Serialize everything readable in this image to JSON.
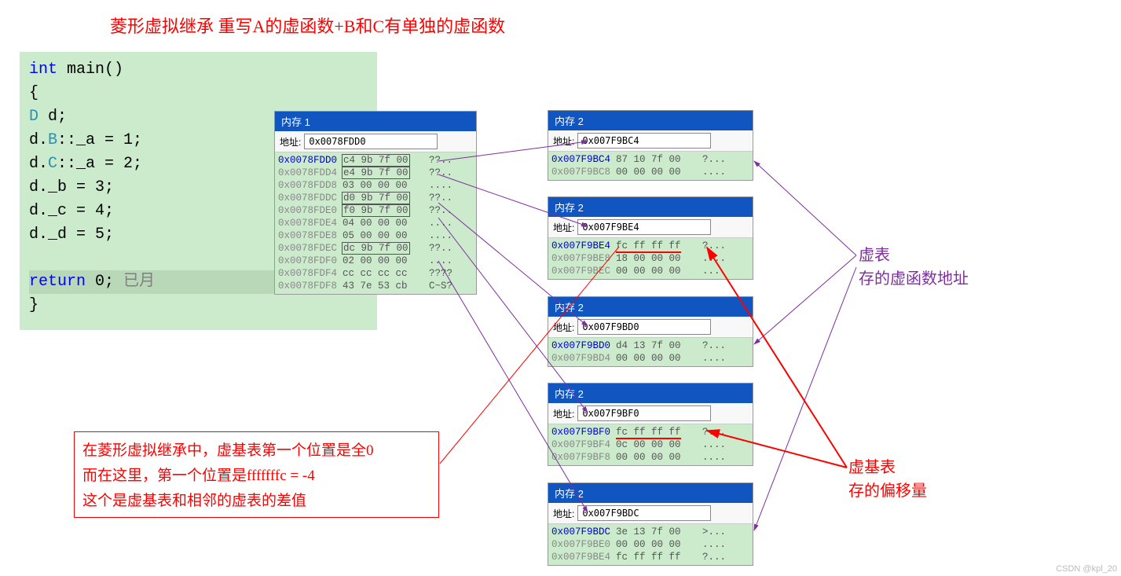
{
  "title": "菱形虚拟继承    重写A的虚函数+B和C有单独的虚函数",
  "code": {
    "l1_kw": "int",
    "l1_fn": " main()",
    "l2": "{",
    "l3_cls": "D",
    "l3_rest": " d;",
    "l4_p1": "    d.",
    "l4_cls": "B",
    "l4_p2": "::_a = 1;",
    "l5_p1": "    d.",
    "l5_cls": "C",
    "l5_p2": "::_a = 2;",
    "l6": "    d._b = 3;",
    "l7": "    d._c = 4;",
    "l8": "    d._d = 5;",
    "l10_kw": "return",
    "l10_num": " 0",
    "l10_end": ";",
    "l10_gray": "   已月",
    "l11": "}"
  },
  "mem1": {
    "title": "内存 1",
    "addr_label": "地址:",
    "addr": "0x0078FDD0",
    "rows": [
      {
        "addr": "0x0078FDD0",
        "hex": "c4 9b 7f 00",
        "ascii": "??..",
        "hl": true,
        "boxed": true
      },
      {
        "addr": "0x0078FDD4",
        "hex": "e4 9b 7f 00",
        "ascii": "??..",
        "boxed": true
      },
      {
        "addr": "0x0078FDD8",
        "hex": "03 00 00 00",
        "ascii": "...."
      },
      {
        "addr": "0x0078FDDC",
        "hex": "d0 9b 7f 00",
        "ascii": "??..",
        "boxed": true
      },
      {
        "addr": "0x0078FDE0",
        "hex": "f0 9b 7f 00",
        "ascii": "??..",
        "boxed": true
      },
      {
        "addr": "0x0078FDE4",
        "hex": "04 00 00 00",
        "ascii": "...."
      },
      {
        "addr": "0x0078FDE8",
        "hex": "05 00 00 00",
        "ascii": "...."
      },
      {
        "addr": "0x0078FDEC",
        "hex": "dc 9b 7f 00",
        "ascii": "??..",
        "boxed": true
      },
      {
        "addr": "0x0078FDF0",
        "hex": "02 00 00 00",
        "ascii": "...."
      },
      {
        "addr": "0x0078FDF4",
        "hex": "cc cc cc cc",
        "ascii": "????"
      },
      {
        "addr": "0x0078FDF8",
        "hex": "43 7e 53 cb",
        "ascii": "C~S?"
      }
    ]
  },
  "mem2a": {
    "title": "内存 2",
    "addr_label": "地址:",
    "addr": "0x007F9BC4",
    "rows": [
      {
        "addr": "0x007F9BC4",
        "hex": "87 10 7f 00",
        "ascii": "?...",
        "hl": true
      },
      {
        "addr": "0x007F9BC8",
        "hex": "00 00 00 00",
        "ascii": "...."
      }
    ]
  },
  "mem2b": {
    "title": "内存 2",
    "addr_label": "地址:",
    "addr": "0x007F9BE4",
    "rows": [
      {
        "addr": "0x007F9BE4",
        "hex": "fc ff ff ff",
        "ascii": "?...",
        "hl": true,
        "underline": true
      },
      {
        "addr": "0x007F9BE8",
        "hex": "18 00 00 00",
        "ascii": "...."
      },
      {
        "addr": "0x007F9BEC",
        "hex": "00 00 00 00",
        "ascii": "...."
      }
    ]
  },
  "mem2c": {
    "title": "内存 2",
    "addr_label": "地址:",
    "addr": "0x007F9BD0",
    "rows": [
      {
        "addr": "0x007F9BD0",
        "hex": "d4 13 7f 00",
        "ascii": "?...",
        "hl": true
      },
      {
        "addr": "0x007F9BD4",
        "hex": "00 00 00 00",
        "ascii": "...."
      }
    ]
  },
  "mem2d": {
    "title": "内存 2",
    "addr_label": "地址:",
    "addr": "0x007F9BF0",
    "rows": [
      {
        "addr": "0x007F9BF0",
        "hex": "fc ff ff ff",
        "ascii": "?...",
        "hl": true,
        "underline": true
      },
      {
        "addr": "0x007F9BF4",
        "hex": "0c 00 00 00",
        "ascii": "...."
      },
      {
        "addr": "0x007F9BF8",
        "hex": "00 00 00 00",
        "ascii": "...."
      }
    ]
  },
  "mem2e": {
    "title": "内存 2",
    "addr_label": "地址:",
    "addr": "0x007F9BDC",
    "rows": [
      {
        "addr": "0x007F9BDC",
        "hex": "3e 13 7f 00",
        "ascii": ">...",
        "hl": true
      },
      {
        "addr": "0x007F9BE0",
        "hex": "00 00 00 00",
        "ascii": "...."
      },
      {
        "addr": "0x007F9BE4",
        "hex": "fc ff ff ff",
        "ascii": "?..."
      }
    ]
  },
  "note_bottom": {
    "l1": "在菱形虚拟继承中，虚基表第一个位置是全0",
    "l2": "而在这里，第一个位置是fffffffc = -4",
    "l3": "这个是虚基表和相邻的虚表的差值"
  },
  "note_right1": {
    "l1": "虚表",
    "l2": "    存的虚函数地址"
  },
  "note_right2": {
    "l1": "虚基表",
    "l2": "    存的偏移量"
  },
  "watermark": "CSDN @kpl_20",
  "colors": {
    "code_bg": "#ccebcc",
    "mem_bg": "#ccebcc",
    "titlebar_bg": "#1055c0",
    "red": "#ff0000",
    "purple": "#7d2f9e",
    "kw_blue": "#0000ff",
    "cls_teal": "#2b91af"
  }
}
